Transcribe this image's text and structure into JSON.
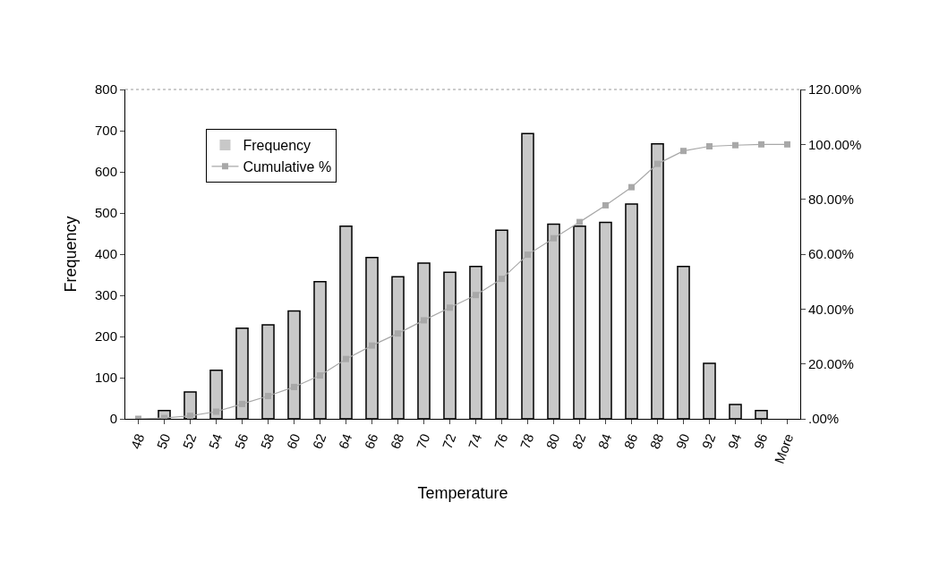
{
  "chart_data": {
    "type": "bar",
    "xlabel": "Temperature",
    "ylabel": "Frequency",
    "categories": [
      "48",
      "50",
      "52",
      "54",
      "56",
      "58",
      "60",
      "62",
      "64",
      "66",
      "68",
      "70",
      "72",
      "74",
      "76",
      "78",
      "80",
      "82",
      "84",
      "86",
      "88",
      "90",
      "92",
      "94",
      "96",
      "More"
    ],
    "series": [
      {
        "name": "Frequency",
        "color": "#c8c8c8",
        "values": [
          0,
          20,
          65,
          118,
          220,
          228,
          262,
          333,
          468,
          392,
          345,
          378,
          356,
          370,
          458,
          693,
          473,
          468,
          477,
          522,
          668,
          370,
          135,
          35,
          20,
          0
        ]
      },
      {
        "name": "Cumulative %",
        "type": "line",
        "axis": "y2",
        "color": "#a8a8a8",
        "marker": "square",
        "values": [
          0,
          0.3,
          1.1,
          2.6,
          5.4,
          8.3,
          11.6,
          15.8,
          21.8,
          26.7,
          31.1,
          35.9,
          40.5,
          45.1,
          51.0,
          59.8,
          65.8,
          71.7,
          77.8,
          84.4,
          92.9,
          97.6,
          99.3,
          99.7,
          100,
          100
        ]
      }
    ],
    "ylim": [
      0,
      800
    ],
    "yticks": [
      0,
      100,
      200,
      300,
      400,
      500,
      600,
      700,
      800
    ],
    "y2lim": [
      0,
      120
    ],
    "y2ticks": [
      {
        "value": 0,
        "label": ".00%"
      },
      {
        "value": 20,
        "label": "20.00%"
      },
      {
        "value": 40,
        "label": "40.00%"
      },
      {
        "value": 60,
        "label": "60.00%"
      },
      {
        "value": 80,
        "label": "80.00%"
      },
      {
        "value": 100,
        "label": "100.00%"
      },
      {
        "value": 120,
        "label": "120.00%"
      }
    ],
    "legend": "top left"
  }
}
